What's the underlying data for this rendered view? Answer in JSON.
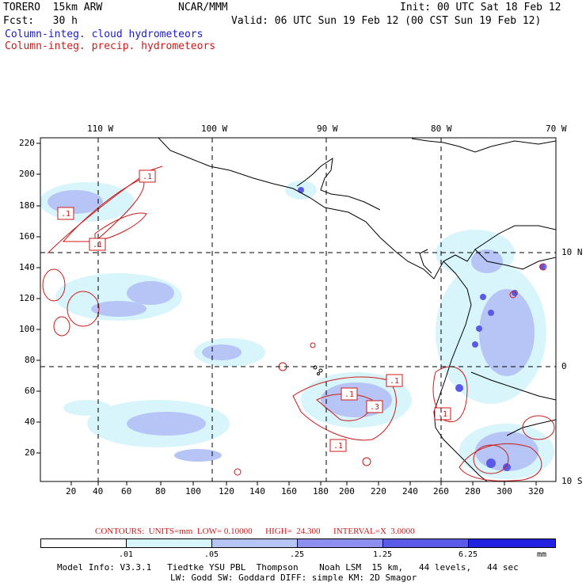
{
  "header": {
    "model": "TORERO  15km ARW",
    "center": "NCAR/MMM",
    "init": "Init: 00 UTC Sat 18 Feb 12",
    "fcst": "Fcst:   30 h",
    "valid": "Valid: 06 UTC Sun 19 Feb 12 (00 CST Sun 19 Feb 12)",
    "field_cloud": "Column-integ. cloud hydrometeors",
    "field_precip": "Column-integ. precip. hydrometeors"
  },
  "axes": {
    "top_lon": [
      "110 W",
      "100 W",
      "90 W",
      "80 W",
      "70 W"
    ],
    "right_lat": [
      "10 N",
      "0",
      "10 S"
    ],
    "left_y": [
      "220",
      "200",
      "180",
      "160",
      "140",
      "120",
      "100",
      "80",
      "60",
      "40",
      "20"
    ],
    "bottom_x": [
      "20",
      "40",
      "60",
      "80",
      "100",
      "120",
      "140",
      "160",
      "180",
      "200",
      "220",
      "240",
      "260",
      "280",
      "300",
      "320"
    ]
  },
  "contour_labels": [
    ".1",
    ".1",
    ".1",
    ".1",
    ".1",
    ".1",
    ".3",
    ".1"
  ],
  "contours_info": {
    "label": "CONTOURS:  UNITS=mm  LOW= 0.10000      HIGH=  24.300      INTERVAL=X  3.0000"
  },
  "colorbar": {
    "ticks": [
      ".01",
      ".05",
      ".25",
      "1.25",
      "6.25"
    ],
    "unit": "mm",
    "colors": [
      "#ffffff",
      "#d7f5fb",
      "#b6c5f5",
      "#8c8ff0",
      "#5a5ae8",
      "#2222e0"
    ]
  },
  "footer": {
    "line1": "Model Info: V3.3.1   Tiedtke YSU PBL  Thompson    Noah LSM  15 km,   44 levels,   44 sec",
    "line2": "LW: Godd SW: Goddard DIFF: simple KM: 2D Smagor"
  }
}
